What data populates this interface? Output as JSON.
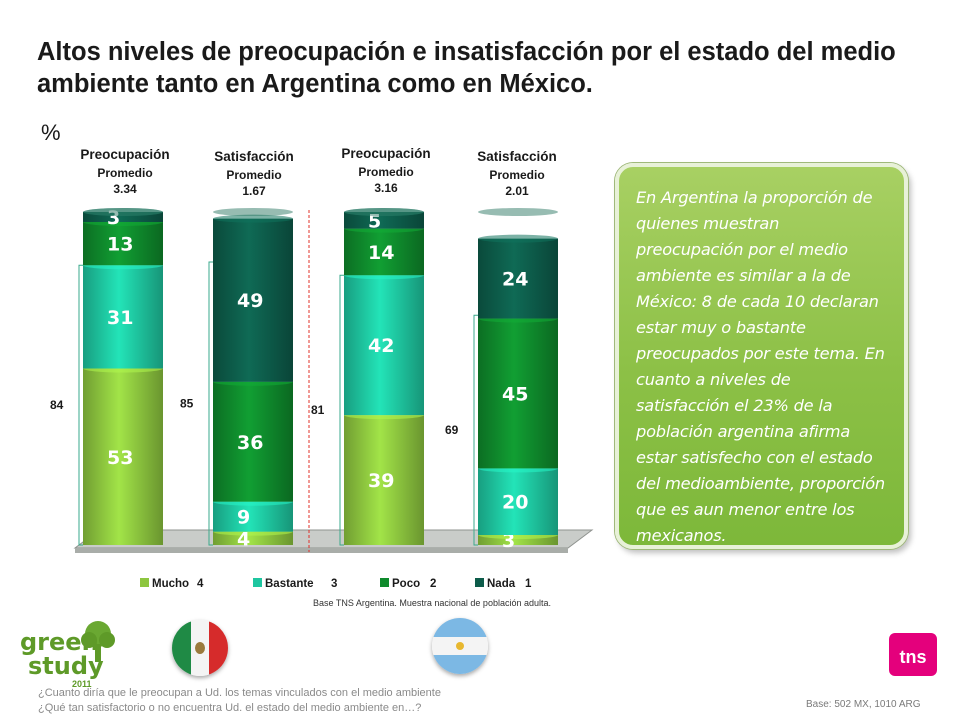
{
  "title": "Altos niveles de preocupación e insatisfacción por el estado del medio ambiente tanto en Argentina como en México.",
  "percent_symbol": "%",
  "headers": [
    {
      "name": "Preocupación",
      "avg_label": "Promedio",
      "avg": "3.34"
    },
    {
      "name": "Satisfacción",
      "avg_label": "Promedio",
      "avg": "1.67"
    },
    {
      "name": "Preocupación",
      "avg_label": "Promedio",
      "avg": "3.16"
    },
    {
      "name": "Satisfacción",
      "avg_label": "Promedio",
      "avg": "2.01"
    }
  ],
  "chart_data": {
    "type": "bar",
    "stacked": true,
    "categories": [
      "Preocupación",
      "Satisfacción",
      "Preocupación",
      "Satisfacción"
    ],
    "series": [
      {
        "name": "Mucho",
        "code": "4",
        "color": "#8dc63f",
        "values": [
          53,
          4,
          39,
          3
        ]
      },
      {
        "name": "Bastante",
        "code": "3",
        "color": "#1ec6a0",
        "values": [
          31,
          9,
          42,
          20
        ]
      },
      {
        "name": "Poco",
        "code": "2",
        "color": "#0f8a2c",
        "values": [
          13,
          36,
          14,
          45
        ]
      },
      {
        "name": "Nada",
        "code": "1",
        "color": "#0d5c4a",
        "values": [
          3,
          49,
          5,
          24
        ]
      }
    ],
    "brackets": [
      84,
      85,
      81,
      69
    ],
    "ylim": [
      0,
      100
    ],
    "legend_position": "bottom"
  },
  "base_note": "Base TNS Argentina. Muestra nacional de población adulta.",
  "callout_text": "En Argentina la proporción de quienes muestran preocupación por el medio ambiente es similar a la de México: 8 de cada 10 declaran estar muy o bastante preocupados por este tema. En cuanto a niveles de satisfacción el 23% de la población argentina afirma estar satisfecho con el estado del medioambiente, proporción que es aun menor entre los mexicanos.",
  "logo": {
    "line1": "green",
    "line2": "study",
    "year": "2011"
  },
  "brand": "tns",
  "questions": [
    "¿Cuanto diría que le preocupan a Ud. los temas vinculados con el medio ambiente",
    "¿Qué tan satisfactorio o no encuentra Ud. el estado del medio ambiente en…?"
  ],
  "base_footer": "Base: 502 MX, 1010 ARG",
  "colors": {
    "callout": "#8cc046",
    "brand": "#e4007c",
    "divider": "#e0302a"
  }
}
